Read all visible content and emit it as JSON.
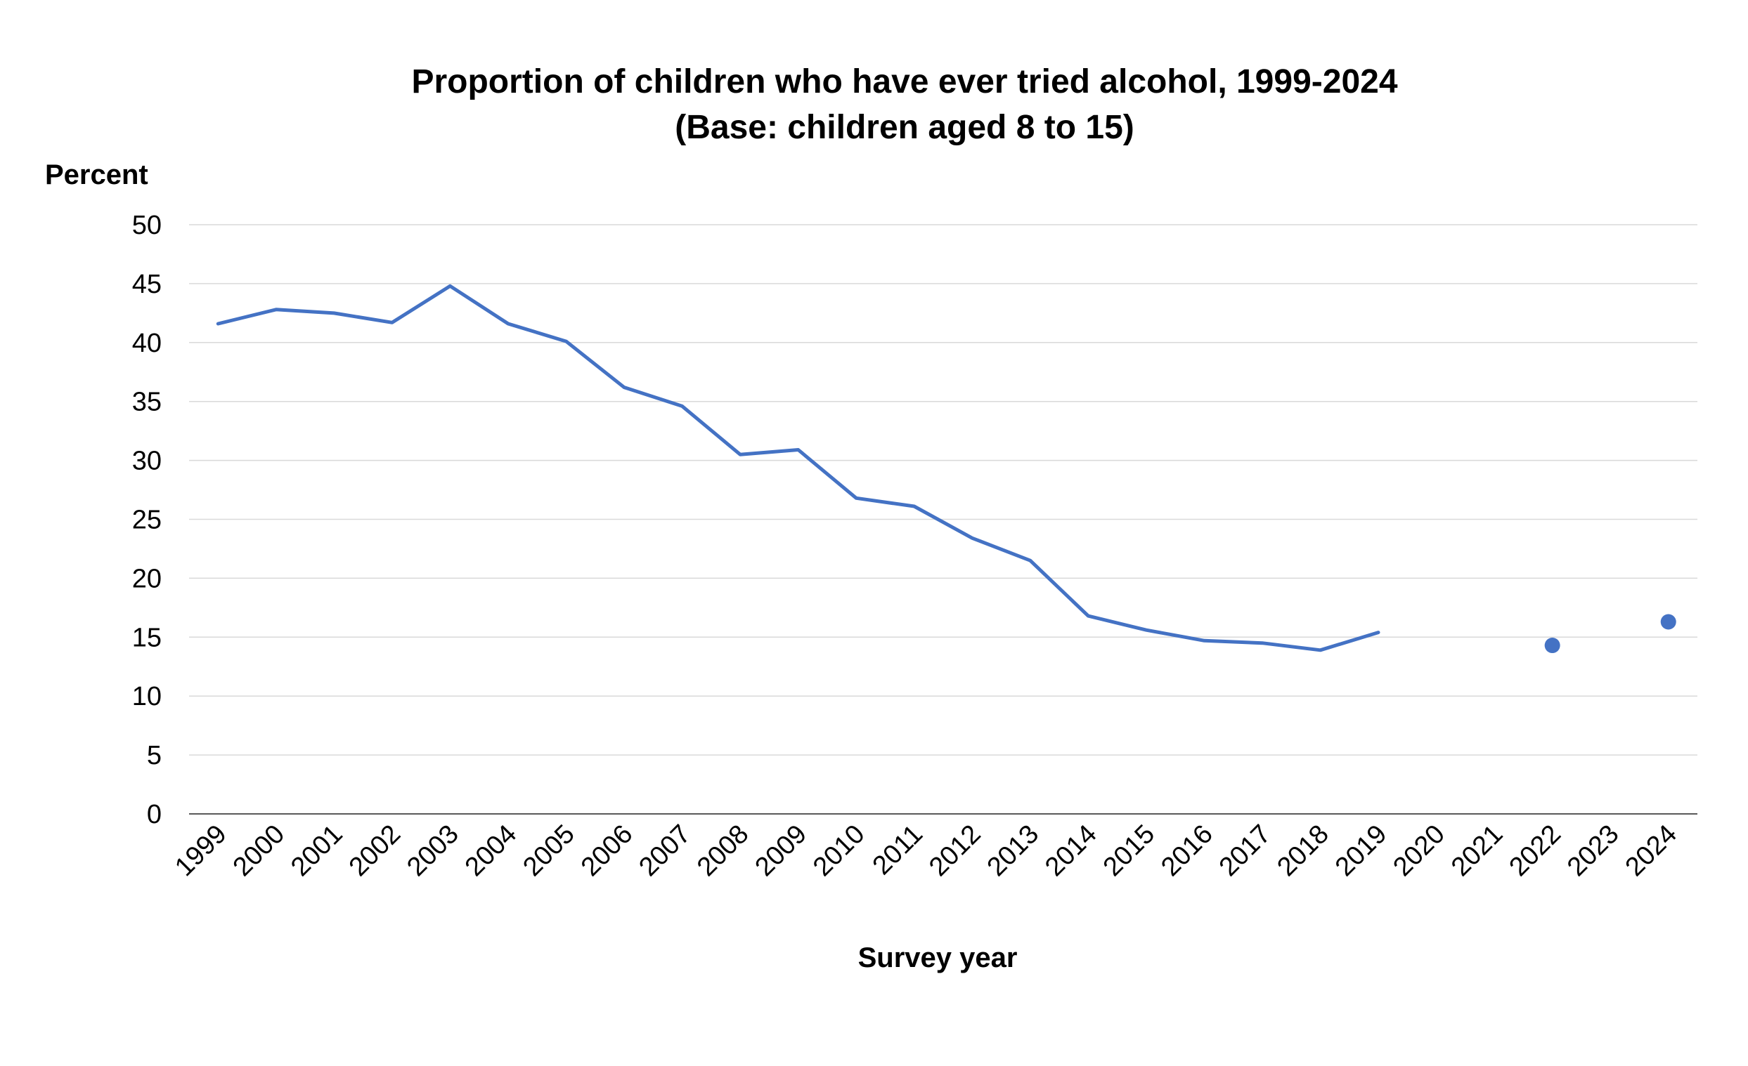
{
  "chart_data": {
    "type": "line",
    "title": "Proportion of children who have ever tried alcohol, 1999-2024",
    "subtitle": "(Base: children aged 8 to 15)",
    "xlabel": "Survey year",
    "ylabel": "Percent",
    "ylim": [
      0,
      50
    ],
    "yticks": [
      "0",
      "5",
      "10",
      "15",
      "20",
      "25",
      "30",
      "35",
      "40",
      "45",
      "50"
    ],
    "categories": [
      "1999",
      "2000",
      "2001",
      "2002",
      "2003",
      "2004",
      "2005",
      "2006",
      "2007",
      "2008",
      "2009",
      "2010",
      "2011",
      "2012",
      "2013",
      "2014",
      "2015",
      "2016",
      "2017",
      "2018",
      "2019",
      "2020",
      "2021",
      "2022",
      "2023",
      "2024"
    ],
    "series": [
      {
        "values": [
          41.6,
          42.8,
          42.5,
          41.7,
          44.8,
          41.6,
          40.1,
          36.2,
          34.6,
          30.5,
          30.9,
          26.8,
          26.1,
          23.4,
          21.5,
          16.8,
          15.6,
          14.7,
          14.5,
          13.9,
          15.4,
          null,
          null,
          14.3,
          null,
          16.3
        ],
        "color": "#4472c4"
      }
    ],
    "grid": true,
    "legend": "none"
  }
}
